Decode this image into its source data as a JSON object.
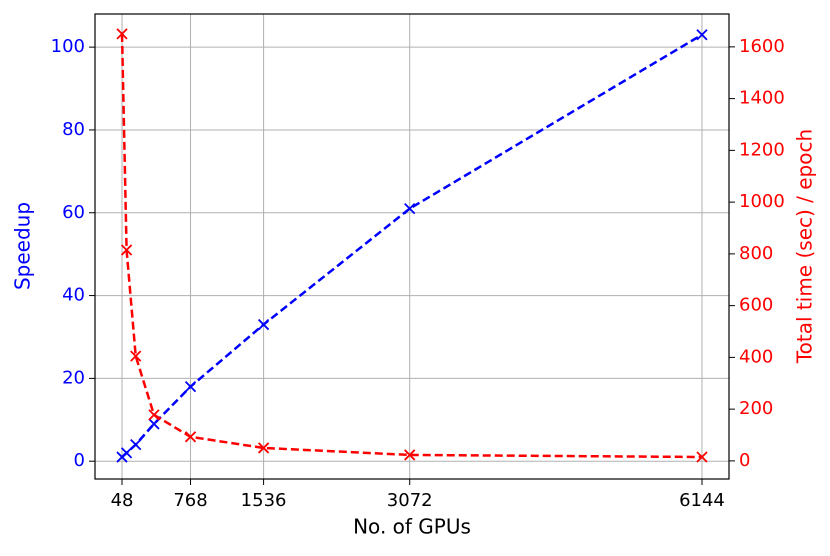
{
  "chart_data": {
    "type": "line",
    "x_label": "No. of GPUs",
    "y_label": "Speedup",
    "y2_label": "Total time (sec) / epoch",
    "x": [
      48,
      96,
      192,
      384,
      768,
      1536,
      3072,
      6144
    ],
    "series": [
      {
        "name": "Speedup",
        "color": "#0000ff",
        "values": [
          1,
          2,
          4,
          9,
          18,
          33,
          61,
          103
        ]
      },
      {
        "name": "Total time (sec) / epoch",
        "color": "#ff0000",
        "axis": "y2",
        "values": [
          1650,
          815,
          405,
          178,
          93,
          50,
          23,
          15
        ]
      }
    ],
    "xlim": [
      -236,
      6428
    ],
    "xticks": [
      48,
      768,
      1536,
      3072,
      6144
    ],
    "ylim": [
      -4.3,
      108
    ],
    "yticks": [
      0,
      20,
      40,
      60,
      80,
      100
    ],
    "y2lim": [
      -70,
      1727
    ],
    "y2ticks": [
      0,
      200,
      400,
      600,
      800,
      1000,
      1200,
      1400,
      1600
    ],
    "grid": true
  }
}
